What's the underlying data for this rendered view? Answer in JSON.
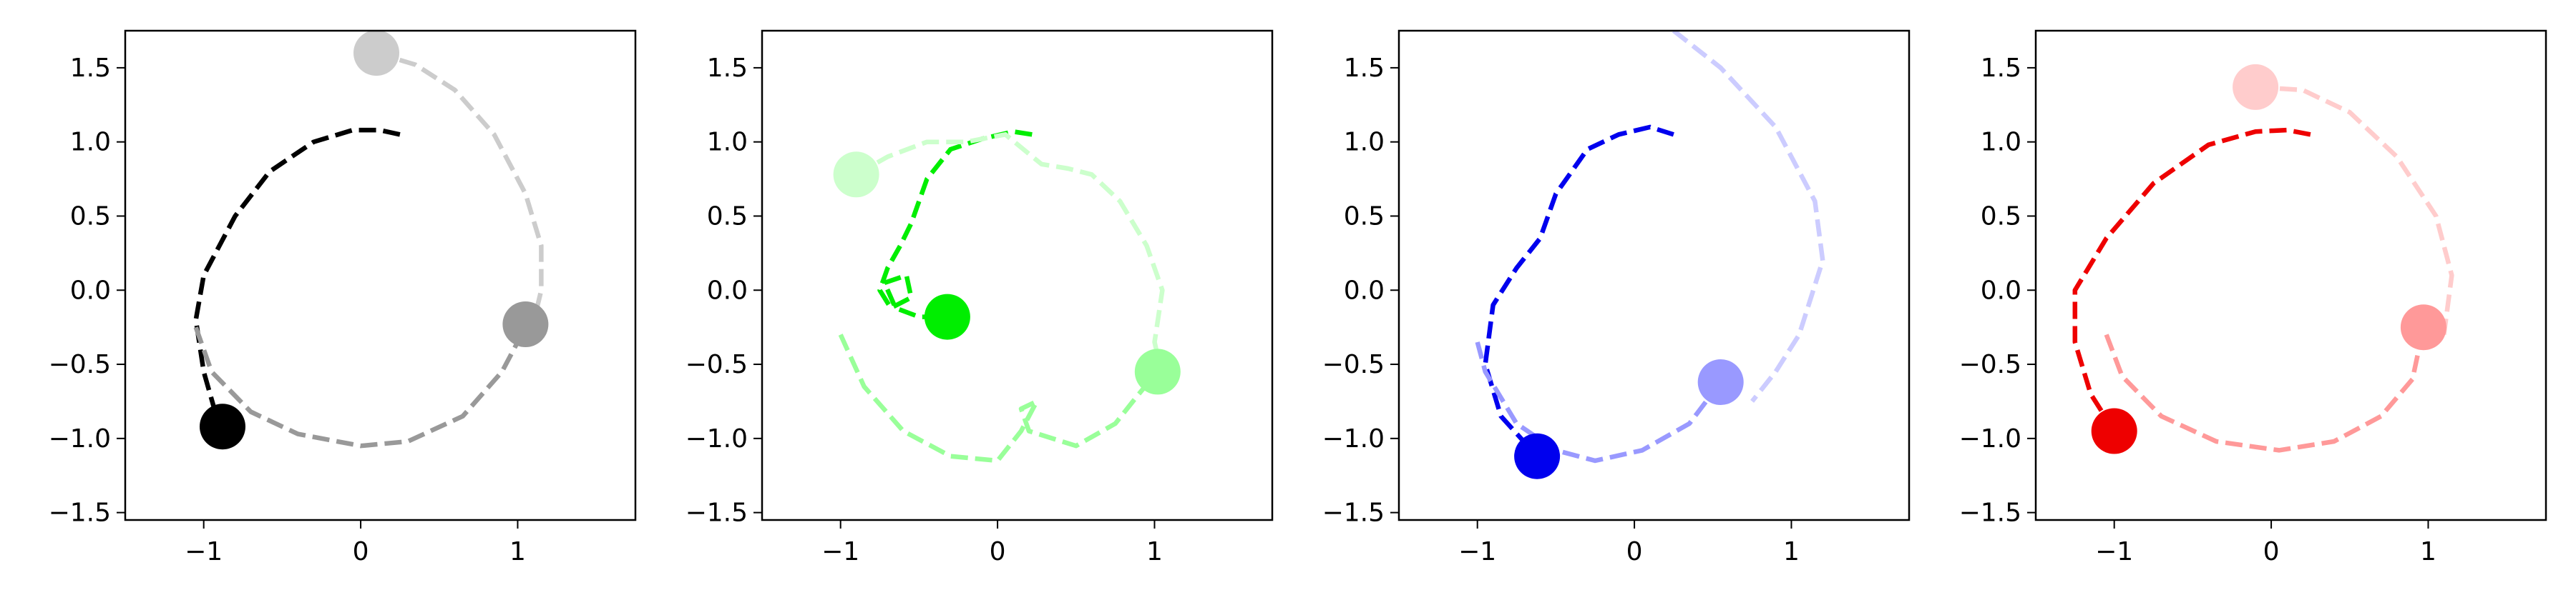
{
  "chart_data": [
    {
      "type": "line",
      "xlim": [
        -1.5,
        1.75
      ],
      "ylim": [
        -1.55,
        1.75
      ],
      "xticks": [
        -1,
        0,
        1
      ],
      "xtick_labels": [
        "−1",
        "0",
        "1"
      ],
      "yticks": [
        -1.5,
        -1.0,
        -0.5,
        0.0,
        0.5,
        1.0,
        1.5
      ],
      "ytick_labels": [
        "−1.5",
        "−1.0",
        "−0.5",
        "0.0",
        "0.5",
        "1.0",
        "1.5"
      ],
      "grid": false,
      "series": [
        {
          "color": "#000000",
          "line": [
            [
              0.25,
              1.05
            ],
            [
              0.12,
              1.08
            ],
            [
              -0.05,
              1.08
            ],
            [
              -0.3,
              1.0
            ],
            [
              -0.58,
              0.8
            ],
            [
              -0.8,
              0.5
            ],
            [
              -1.0,
              0.1
            ],
            [
              -1.05,
              -0.2
            ],
            [
              -1.0,
              -0.55
            ],
            [
              -0.9,
              -0.92
            ]
          ],
          "marker": [
            -0.88,
            -0.92
          ]
        },
        {
          "color": "#cccccc",
          "line": [
            [
              0.1,
              1.6
            ],
            [
              0.35,
              1.52
            ],
            [
              0.6,
              1.35
            ],
            [
              0.85,
              1.05
            ],
            [
              1.05,
              0.65
            ],
            [
              1.15,
              0.3
            ],
            [
              1.15,
              0.0
            ],
            [
              1.1,
              -0.22
            ]
          ],
          "marker": [
            0.1,
            1.6
          ]
        },
        {
          "color": "#999999",
          "line": [
            [
              -1.05,
              -0.25
            ],
            [
              -0.95,
              -0.55
            ],
            [
              -0.7,
              -0.82
            ],
            [
              -0.4,
              -0.97
            ],
            [
              0.0,
              -1.05
            ],
            [
              0.3,
              -1.02
            ],
            [
              0.65,
              -0.85
            ],
            [
              0.9,
              -0.55
            ],
            [
              1.05,
              -0.25
            ]
          ],
          "marker": [
            1.05,
            -0.23
          ]
        }
      ]
    },
    {
      "type": "line",
      "xlim": [
        -1.5,
        1.75
      ],
      "ylim": [
        -1.55,
        1.75
      ],
      "xticks": [
        -1,
        0,
        1
      ],
      "xtick_labels": [
        "−1",
        "0",
        "1"
      ],
      "yticks": [
        -1.5,
        -1.0,
        -0.5,
        0.0,
        0.5,
        1.0,
        1.5
      ],
      "ytick_labels": [
        "−1.5",
        "−1.0",
        "−0.5",
        "0.0",
        "0.5",
        "1.0",
        "1.5"
      ],
      "grid": false,
      "series": [
        {
          "color": "#00ee00",
          "line": [
            [
              0.22,
              1.05
            ],
            [
              0.1,
              1.07
            ],
            [
              -0.1,
              1.02
            ],
            [
              -0.3,
              0.95
            ],
            [
              -0.45,
              0.75
            ],
            [
              -0.55,
              0.45
            ],
            [
              -0.62,
              0.3
            ],
            [
              -0.7,
              0.15
            ],
            [
              -0.75,
              0.0
            ],
            [
              -0.68,
              -0.12
            ],
            [
              -0.55,
              -0.05
            ],
            [
              -0.58,
              0.1
            ],
            [
              -0.72,
              0.05
            ],
            [
              -0.65,
              -0.12
            ],
            [
              -0.5,
              -0.18
            ],
            [
              -0.32,
              -0.18
            ]
          ],
          "marker": [
            -0.32,
            -0.18
          ]
        },
        {
          "color": "#ccffcc",
          "line": [
            [
              -0.9,
              0.78
            ],
            [
              -0.7,
              0.9
            ],
            [
              -0.45,
              1.0
            ],
            [
              -0.2,
              1.0
            ],
            [
              0.05,
              1.05
            ],
            [
              0.28,
              0.85
            ],
            [
              0.45,
              0.82
            ],
            [
              0.6,
              0.78
            ],
            [
              0.78,
              0.6
            ],
            [
              0.95,
              0.3
            ],
            [
              1.05,
              0.0
            ],
            [
              1.0,
              -0.35
            ],
            [
              1.05,
              -0.58
            ]
          ],
          "marker": [
            -0.9,
            0.78
          ]
        },
        {
          "color": "#99ff99",
          "line": [
            [
              -1.0,
              -0.3
            ],
            [
              -0.85,
              -0.65
            ],
            [
              -0.6,
              -0.95
            ],
            [
              -0.3,
              -1.12
            ],
            [
              0.0,
              -1.15
            ],
            [
              0.15,
              -0.95
            ],
            [
              0.25,
              -0.75
            ],
            [
              0.15,
              -0.8
            ],
            [
              0.2,
              -0.95
            ],
            [
              0.5,
              -1.05
            ],
            [
              0.75,
              -0.9
            ],
            [
              0.9,
              -0.7
            ],
            [
              1.02,
              -0.55
            ]
          ],
          "marker": [
            1.02,
            -0.55
          ]
        }
      ]
    },
    {
      "type": "line",
      "xlim": [
        -1.5,
        1.75
      ],
      "ylim": [
        -1.55,
        1.75
      ],
      "xticks": [
        -1,
        0,
        1
      ],
      "xtick_labels": [
        "−1",
        "0",
        "1"
      ],
      "yticks": [
        -1.5,
        -1.0,
        -0.5,
        0.0,
        0.5,
        1.0,
        1.5
      ],
      "ytick_labels": [
        "−1.5",
        "−1.0",
        "−0.5",
        "0.0",
        "0.5",
        "1.0",
        "1.5"
      ],
      "grid": false,
      "series": [
        {
          "color": "#0000ee",
          "line": [
            [
              0.25,
              1.05
            ],
            [
              0.1,
              1.1
            ],
            [
              -0.1,
              1.05
            ],
            [
              -0.3,
              0.95
            ],
            [
              -0.5,
              0.65
            ],
            [
              -0.6,
              0.35
            ],
            [
              -0.75,
              0.15
            ],
            [
              -0.9,
              -0.1
            ],
            [
              -0.95,
              -0.5
            ],
            [
              -0.85,
              -0.85
            ],
            [
              -0.62,
              -1.12
            ]
          ],
          "marker": [
            -0.62,
            -1.12
          ]
        },
        {
          "color": "#ccccff",
          "line": [
            [
              0.25,
              1.75
            ],
            [
              0.55,
              1.5
            ],
            [
              0.9,
              1.1
            ],
            [
              1.15,
              0.6
            ],
            [
              1.2,
              0.2
            ],
            [
              1.05,
              -0.3
            ],
            [
              0.9,
              -0.55
            ],
            [
              0.75,
              -0.75
            ]
          ],
          "marker": null
        },
        {
          "color": "#9999ff",
          "line": [
            [
              -1.0,
              -0.35
            ],
            [
              -0.95,
              -0.55
            ],
            [
              -0.75,
              -0.9
            ],
            [
              -0.5,
              -1.08
            ],
            [
              -0.25,
              -1.15
            ],
            [
              0.05,
              -1.08
            ],
            [
              0.35,
              -0.9
            ],
            [
              0.55,
              -0.62
            ]
          ],
          "marker": [
            0.55,
            -0.62
          ]
        }
      ]
    },
    {
      "type": "line",
      "xlim": [
        -1.5,
        1.75
      ],
      "ylim": [
        -1.55,
        1.75
      ],
      "xticks": [
        -1,
        0,
        1
      ],
      "xtick_labels": [
        "−1",
        "0",
        "1"
      ],
      "yticks": [
        -1.5,
        -1.0,
        -0.5,
        0.0,
        0.5,
        1.0,
        1.5
      ],
      "ytick_labels": [
        "−1.5",
        "−1.0",
        "−0.5",
        "0.0",
        "0.5",
        "1.0",
        "1.5"
      ],
      "grid": false,
      "series": [
        {
          "color": "#ee0000",
          "line": [
            [
              0.25,
              1.05
            ],
            [
              0.1,
              1.08
            ],
            [
              -0.1,
              1.07
            ],
            [
              -0.4,
              0.98
            ],
            [
              -0.75,
              0.72
            ],
            [
              -1.05,
              0.35
            ],
            [
              -1.25,
              0.0
            ],
            [
              -1.25,
              -0.35
            ],
            [
              -1.15,
              -0.7
            ],
            [
              -1.0,
              -0.95
            ]
          ],
          "marker": [
            -1.0,
            -0.95
          ]
        },
        {
          "color": "#ffcccc",
          "line": [
            [
              -0.1,
              1.37
            ],
            [
              0.2,
              1.35
            ],
            [
              0.5,
              1.2
            ],
            [
              0.8,
              0.9
            ],
            [
              1.05,
              0.5
            ],
            [
              1.15,
              0.1
            ],
            [
              1.1,
              -0.3
            ]
          ],
          "marker": [
            -0.1,
            1.37
          ]
        },
        {
          "color": "#ff9999",
          "line": [
            [
              -1.05,
              -0.3
            ],
            [
              -0.95,
              -0.58
            ],
            [
              -0.7,
              -0.85
            ],
            [
              -0.35,
              -1.02
            ],
            [
              0.05,
              -1.08
            ],
            [
              0.4,
              -1.02
            ],
            [
              0.7,
              -0.85
            ],
            [
              0.9,
              -0.6
            ],
            [
              0.97,
              -0.25
            ]
          ],
          "marker": [
            0.97,
            -0.25
          ]
        }
      ]
    }
  ]
}
